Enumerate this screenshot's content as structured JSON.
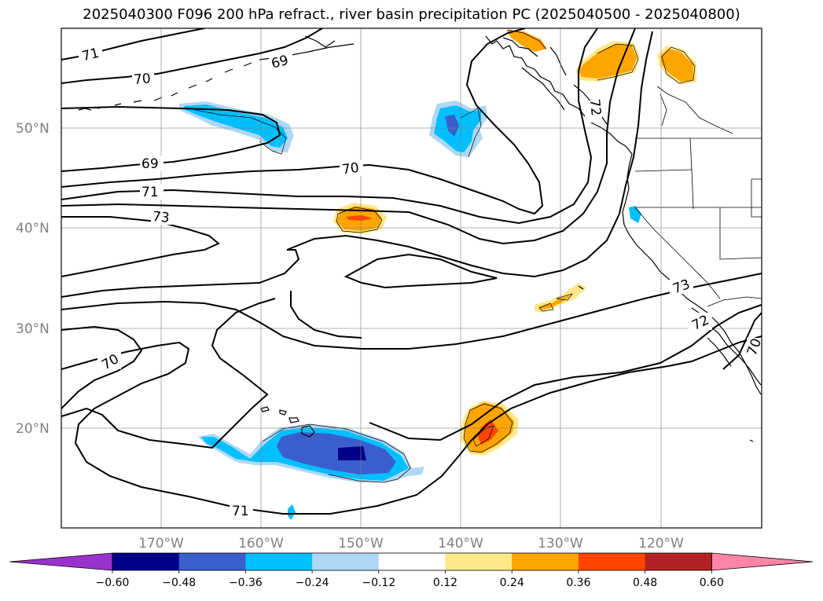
{
  "title": "2025040300 F096 200 hPa refract., river basin precipitation PC (2025040500 - 2025040800)",
  "lat_labels": [
    "50°N",
    "40°N",
    "30°N",
    "20°N"
  ],
  "lon_labels": [
    "170°W",
    "160°W",
    "150°W",
    "140°W",
    "130°W",
    "120°W"
  ],
  "contour_labels": [
    "71",
    "70",
    "69",
    "69",
    "70",
    "71",
    "73",
    "72",
    "70",
    "73",
    "72",
    "70",
    "71"
  ],
  "colorbar": {
    "ticks": [
      "−0.60",
      "−0.48",
      "−0.36",
      "−0.24",
      "−0.12",
      "0.12",
      "0.24",
      "0.36",
      "0.48",
      "0.60"
    ],
    "colors": [
      "#9932cc",
      "#00008b",
      "#3a5fcd",
      "#00bfff",
      "#add8f5",
      "#ffffff",
      "#ffe88a",
      "#ffa500",
      "#ff4500",
      "#b22222",
      "#ff85a8"
    ]
  },
  "fill_colors": {
    "light_blue": "#add8f5",
    "blue": "#00bfff",
    "royal": "#3a5fcd",
    "navy": "#00008b",
    "light_yellow": "#ffe88a",
    "orange": "#ffa500",
    "red_orange": "#ff4500"
  }
}
